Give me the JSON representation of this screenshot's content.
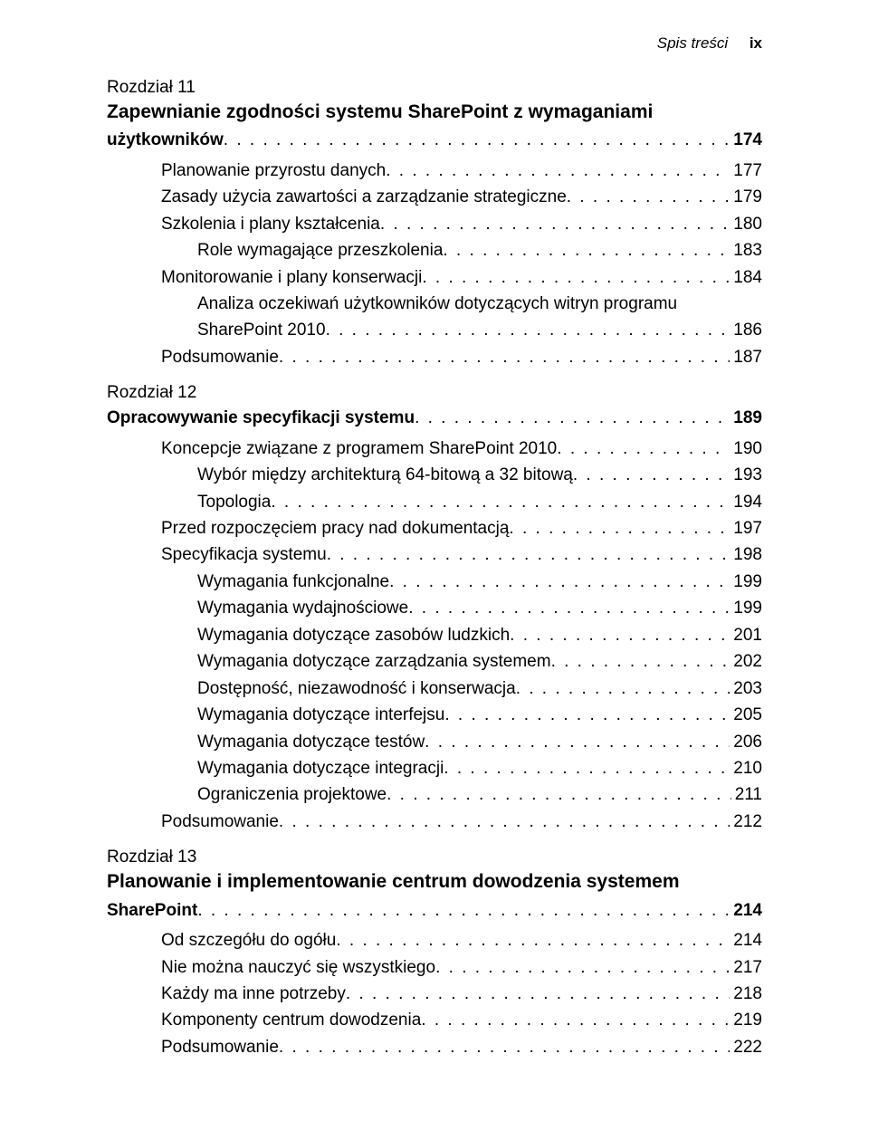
{
  "header": {
    "left": "Spis treści",
    "right": "ix"
  },
  "ch11": {
    "label": "Rozdział 11",
    "titleLine1": "Zapewnianie zgodności systemu SharePoint z wymaganiami",
    "titleLine2Label": "użytkowników",
    "titlePage": "174",
    "entries": [
      {
        "indent": 1,
        "label": "Planowanie przyrostu danych",
        "page": "177"
      },
      {
        "indent": 1,
        "label": "Zasady użycia zawartości a zarządzanie strategiczne",
        "page": "179"
      },
      {
        "indent": 1,
        "label": "Szkolenia i plany kształcenia",
        "page": "180"
      },
      {
        "indent": 2,
        "label": "Role wymagające przeszkolenia",
        "page": "183"
      },
      {
        "indent": 1,
        "label": "Monitorowanie i plany konserwacji",
        "page": "184"
      },
      {
        "indent": 1,
        "label": "Analiza oczekiwań użytkowników dotyczących witryn programu",
        "wrap": true
      },
      {
        "indent": 2,
        "label": "SharePoint 2010",
        "page": "186"
      },
      {
        "indent": 1,
        "label": "Podsumowanie",
        "page": "187"
      }
    ]
  },
  "ch12": {
    "label": "Rozdział 12",
    "titleLabel": "Opracowywanie specyfikacji systemu",
    "titlePage": "189",
    "entries": [
      {
        "indent": 1,
        "label": "Koncepcje związane z programem SharePoint 2010",
        "page": "190"
      },
      {
        "indent": 2,
        "label": "Wybór między architekturą 64-bitową a 32 bitową",
        "page": "193"
      },
      {
        "indent": 2,
        "label": "Topologia",
        "page": "194"
      },
      {
        "indent": 1,
        "label": "Przed rozpoczęciem pracy nad dokumentacją",
        "page": "197"
      },
      {
        "indent": 1,
        "label": "Specyfikacja systemu",
        "page": "198"
      },
      {
        "indent": 2,
        "label": "Wymagania funkcjonalne",
        "page": "199"
      },
      {
        "indent": 2,
        "label": "Wymagania wydajnościowe",
        "page": "199"
      },
      {
        "indent": 2,
        "label": "Wymagania dotyczące zasobów ludzkich",
        "page": "201"
      },
      {
        "indent": 2,
        "label": "Wymagania dotyczące zarządzania systemem",
        "page": "202"
      },
      {
        "indent": 2,
        "label": "Dostępność, niezawodność i konserwacja",
        "page": "203"
      },
      {
        "indent": 2,
        "label": "Wymagania dotyczące interfejsu",
        "page": "205"
      },
      {
        "indent": 2,
        "label": "Wymagania dotyczące testów",
        "page": "206"
      },
      {
        "indent": 2,
        "label": "Wymagania dotyczące integracji",
        "page": "210"
      },
      {
        "indent": 2,
        "label": "Ograniczenia projektowe",
        "page": "211"
      },
      {
        "indent": 1,
        "label": "Podsumowanie",
        "page": "212"
      }
    ]
  },
  "ch13": {
    "label": "Rozdział 13",
    "titleLine1": "Planowanie i implementowanie centrum dowodzenia systemem",
    "titleLine2Label": "SharePoint",
    "titlePage": "214",
    "entries": [
      {
        "indent": 1,
        "label": "Od szczegółu do ogółu",
        "page": "214"
      },
      {
        "indent": 1,
        "label": "Nie można nauczyć się wszystkiego",
        "page": "217"
      },
      {
        "indent": 1,
        "label": "Każdy ma inne potrzeby",
        "page": "218"
      },
      {
        "indent": 1,
        "label": "Komponenty centrum dowodzenia",
        "page": "219"
      },
      {
        "indent": 1,
        "label": "Podsumowanie",
        "page": "222"
      }
    ]
  }
}
